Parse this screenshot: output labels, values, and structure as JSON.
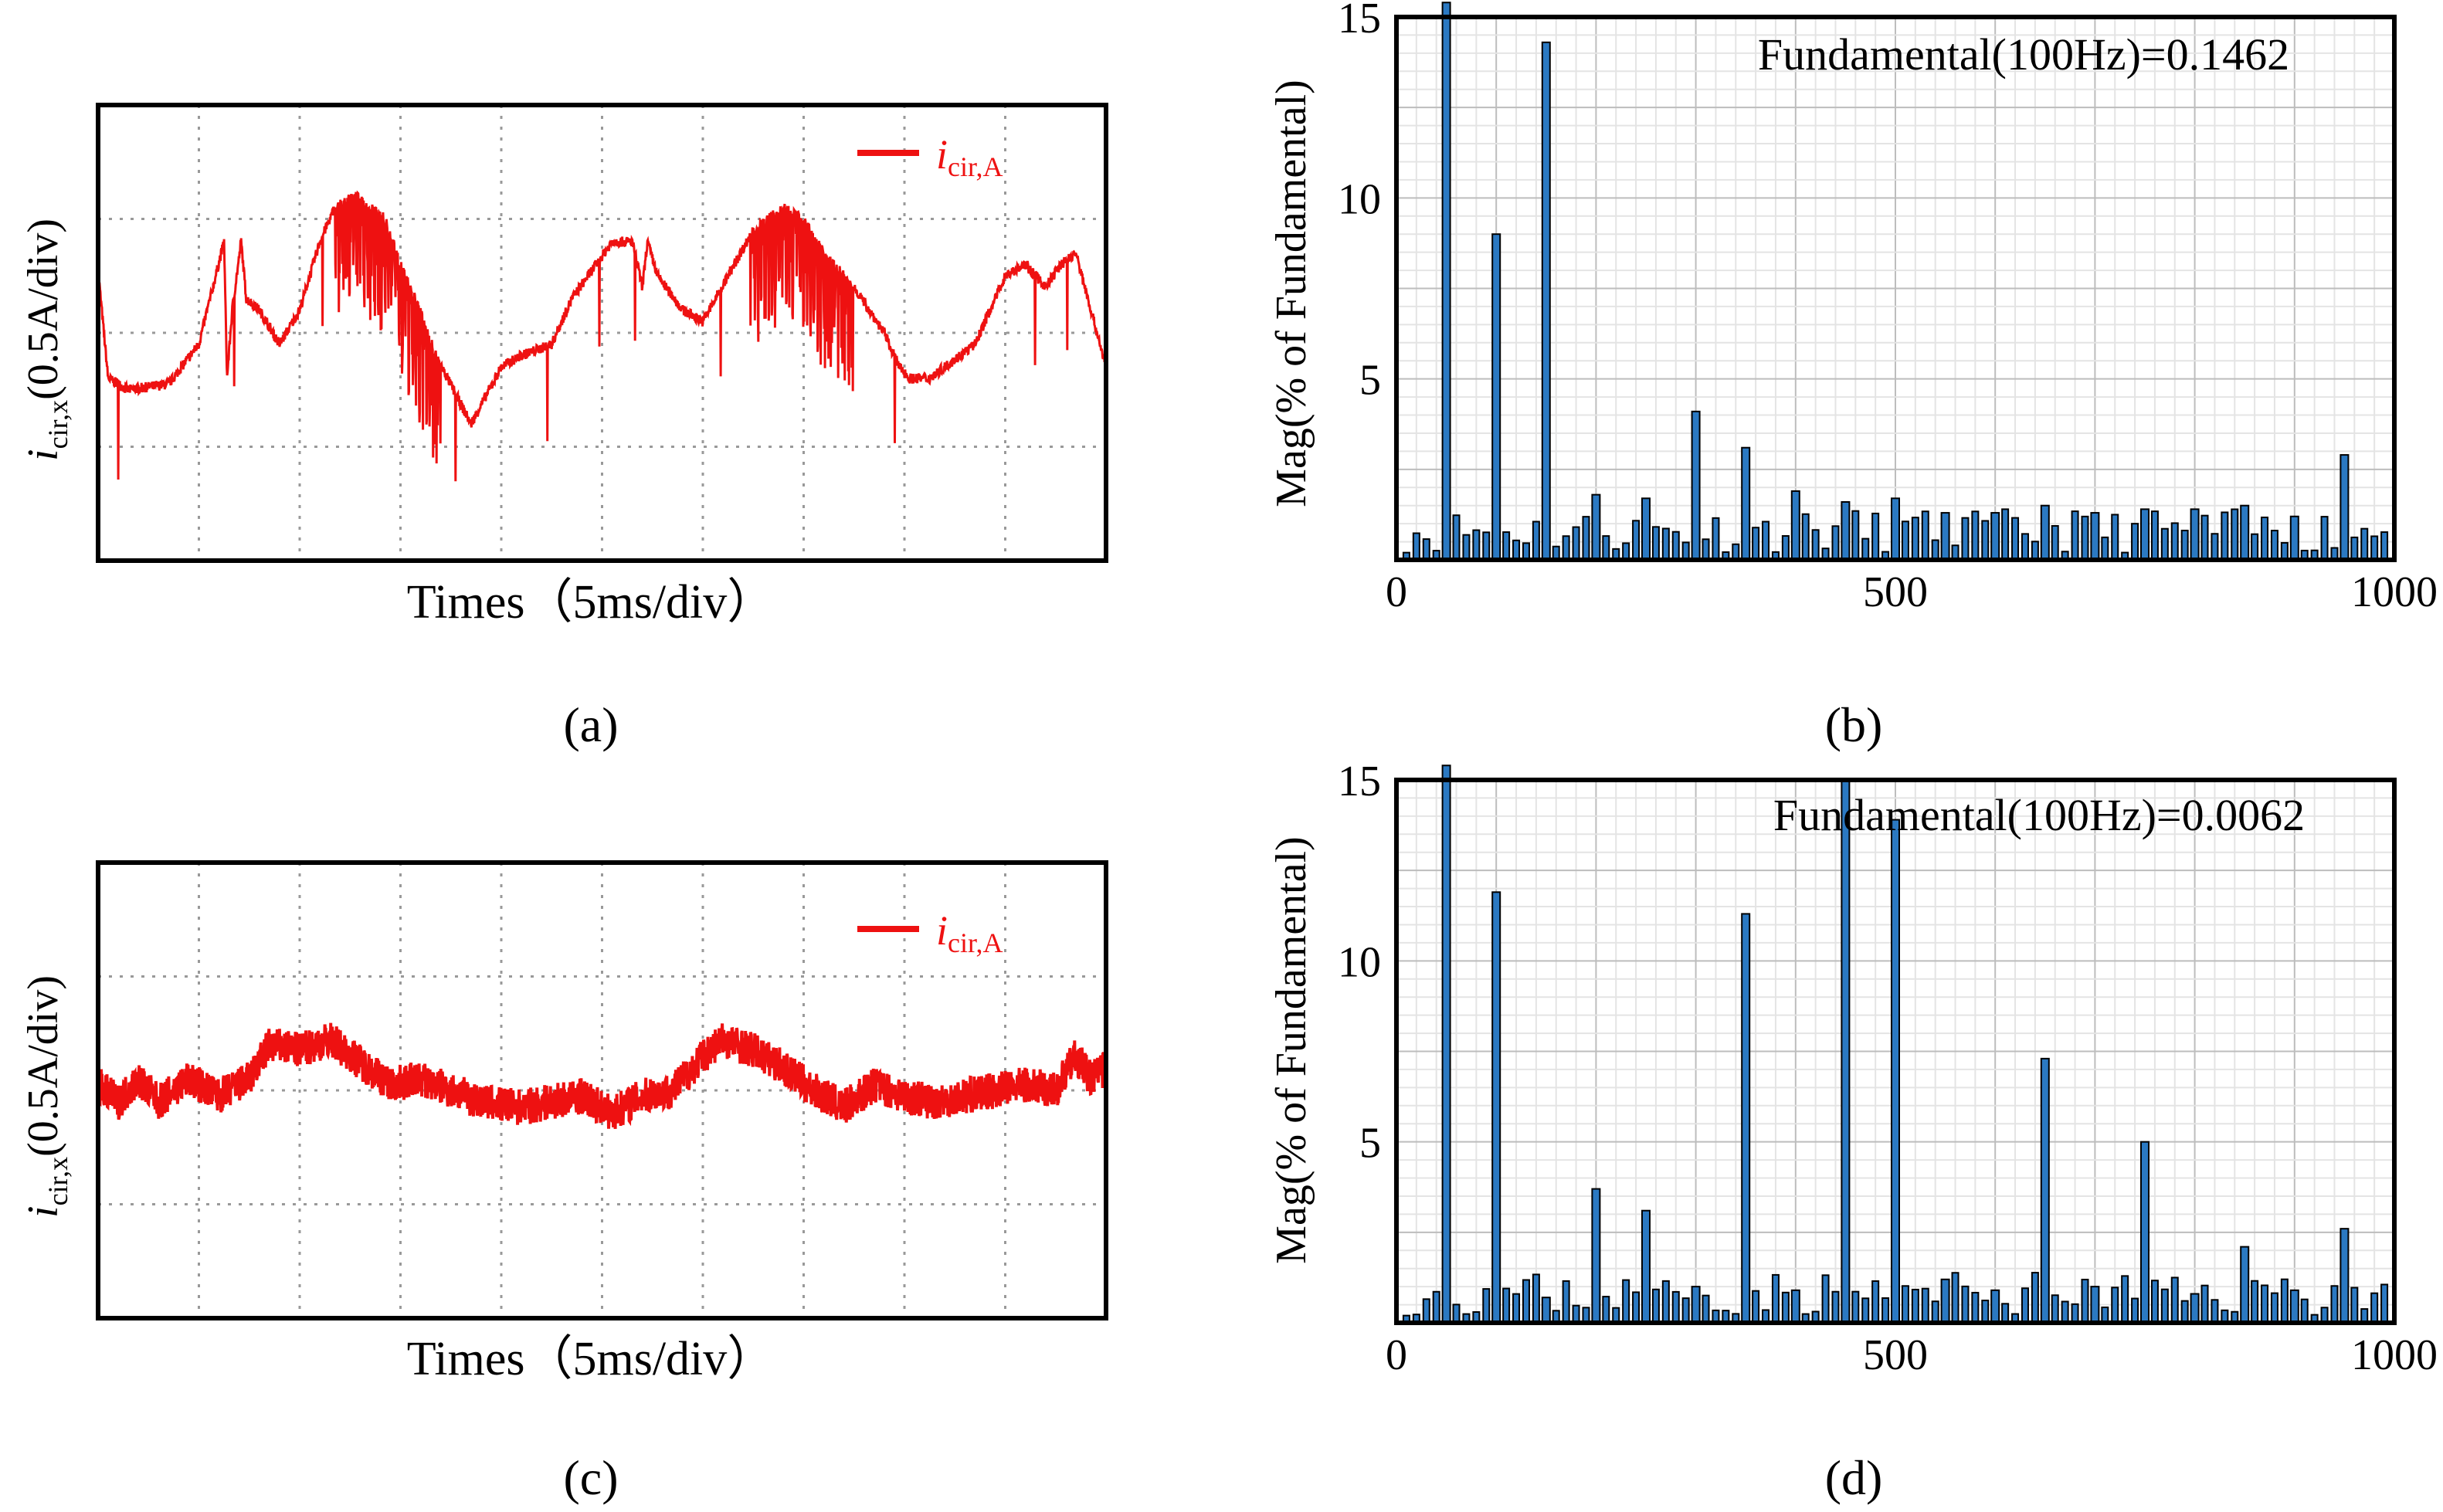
{
  "colors": {
    "trace": "#ee1111",
    "bar_fill": "#2b79c2",
    "bar_stroke": "#000000",
    "grid": "#c8c8c8"
  },
  "panel_labels": {
    "a": "(a)",
    "b": "(b)",
    "c": "(c)",
    "d": "(d)"
  },
  "waveform_panels": {
    "a": {
      "ylabel": "i",
      "ylabel_sub": "cir,x",
      "ylabel_unit": "(0.5A/div)",
      "xlabel": "Times（5ms/div）",
      "legend": "i",
      "legend_sub": "cir,A"
    },
    "c": {
      "ylabel": "i",
      "ylabel_sub": "cir,x",
      "ylabel_unit": "(0.5A/div)",
      "xlabel": "Times（5ms/div）",
      "legend": "i",
      "legend_sub": "cir,A"
    }
  },
  "chart_data": [
    {
      "id": "a",
      "type": "line",
      "title": "",
      "xlabel": "Times（5ms/div）",
      "ylabel": "icir,x(0.5A/div)",
      "x_divisions": 10,
      "y_divisions": 4,
      "ylim": [
        -2,
        2
      ],
      "series": [
        {
          "name": "icir,A",
          "x": [
            0,
            0.1,
            0.3,
            0.7,
            1.0,
            1.25,
            1.28,
            1.33,
            1.42,
            1.47,
            1.6,
            1.8,
            2.0,
            2.2,
            2.35,
            2.55,
            2.85,
            3.0,
            3.15,
            3.35,
            3.7,
            4.0,
            4.2,
            4.5,
            4.7,
            5.1,
            5.3,
            5.4,
            5.45,
            5.55,
            5.8,
            6.0,
            6.25,
            6.5,
            6.8,
            7.0,
            7.2,
            7.5,
            7.8,
            7.95,
            8.05,
            8.25,
            8.4,
            8.7,
            8.9,
            9.0,
            9.2,
            9.4,
            9.55,
            9.7,
            9.85,
            10.0
          ],
          "y": [
            0.55,
            -0.4,
            -0.5,
            -0.45,
            -0.1,
            0.8,
            -0.4,
            0.2,
            0.8,
            0.3,
            0.2,
            -0.1,
            0.2,
            0.8,
            1.1,
            1.2,
            1.0,
            0.6,
            0.3,
            -0.2,
            -0.8,
            -0.3,
            -0.2,
            -0.1,
            0.3,
            0.8,
            0.8,
            0.4,
            0.8,
            0.5,
            0.2,
            0.1,
            0.5,
            0.9,
            1.1,
            1.0,
            0.7,
            0.4,
            0.0,
            -0.3,
            -0.4,
            -0.4,
            -0.3,
            -0.1,
            0.3,
            0.5,
            0.6,
            0.4,
            0.6,
            0.7,
            0.2,
            -0.3
          ]
        }
      ]
    },
    {
      "id": "b",
      "type": "bar",
      "title": "Fundamental(100Hz)=0.1462",
      "xlabel": "",
      "ylabel": "Mag(% of Fundamental)",
      "xlim": [
        0,
        1000
      ],
      "ylim": [
        0,
        15
      ],
      "x_ticks": [
        0,
        500,
        1000
      ],
      "y_ticks": [
        5,
        10,
        15
      ],
      "categories": [
        50,
        100,
        150,
        200,
        250,
        300,
        350,
        400,
        450,
        500,
        550,
        600,
        650,
        700,
        750,
        800,
        850,
        900,
        950
      ],
      "values": [
        15.4,
        9.0,
        14.3,
        1.8,
        1.7,
        4.1,
        3.1,
        1.9,
        1.6,
        1.7,
        1.3,
        1.3,
        1.5,
        1.3,
        1.4,
        1.4,
        1.5,
        1.2,
        2.9
      ]
    },
    {
      "id": "c",
      "type": "line",
      "title": "",
      "xlabel": "Times（5ms/div）",
      "ylabel": "icir,x(0.5A/div)",
      "x_divisions": 10,
      "y_divisions": 4,
      "ylim": [
        -2,
        2
      ],
      "series": [
        {
          "name": "icir,A",
          "x": [
            0,
            0.2,
            0.4,
            0.6,
            0.9,
            1.2,
            1.5,
            1.7,
            2.0,
            2.3,
            2.6,
            2.9,
            3.2,
            3.5,
            3.8,
            4.2,
            4.5,
            4.8,
            5.1,
            5.4,
            5.7,
            6.0,
            6.2,
            6.5,
            6.8,
            7.1,
            7.4,
            7.7,
            8.0,
            8.3,
            8.6,
            8.9,
            9.2,
            9.5,
            9.7,
            9.85,
            10.0
          ],
          "y": [
            0.05,
            -0.1,
            0.1,
            -0.1,
            0.1,
            -0.05,
            0.1,
            0.4,
            0.35,
            0.45,
            0.25,
            0.05,
            0.1,
            0.0,
            -0.1,
            -0.15,
            -0.1,
            -0.05,
            -0.2,
            -0.05,
            0.0,
            0.3,
            0.45,
            0.35,
            0.2,
            0.0,
            -0.15,
            0.05,
            -0.05,
            -0.1,
            -0.05,
            0.0,
            0.05,
            0.0,
            0.3,
            0.1,
            0.2
          ]
        }
      ]
    },
    {
      "id": "d",
      "type": "bar",
      "title": "Fundamental(100Hz)=0.0062",
      "xlabel": "",
      "ylabel": "Mag(% of Fundamental)",
      "xlim": [
        0,
        1000
      ],
      "ylim": [
        0,
        15
      ],
      "x_ticks": [
        0,
        500,
        1000
      ],
      "y_ticks": [
        5,
        10,
        15
      ],
      "categories": [
        50,
        100,
        150,
        200,
        250,
        300,
        350,
        400,
        450,
        500,
        550,
        600,
        650,
        700,
        750,
        800,
        850,
        900,
        950
      ],
      "values": [
        15.6,
        11.9,
        0.7,
        3.7,
        3.1,
        1.0,
        11.3,
        0.9,
        15.0,
        13.9,
        1.2,
        0.9,
        7.3,
        1.0,
        5.0,
        0.8,
        2.1,
        0.9,
        2.6
      ]
    }
  ]
}
